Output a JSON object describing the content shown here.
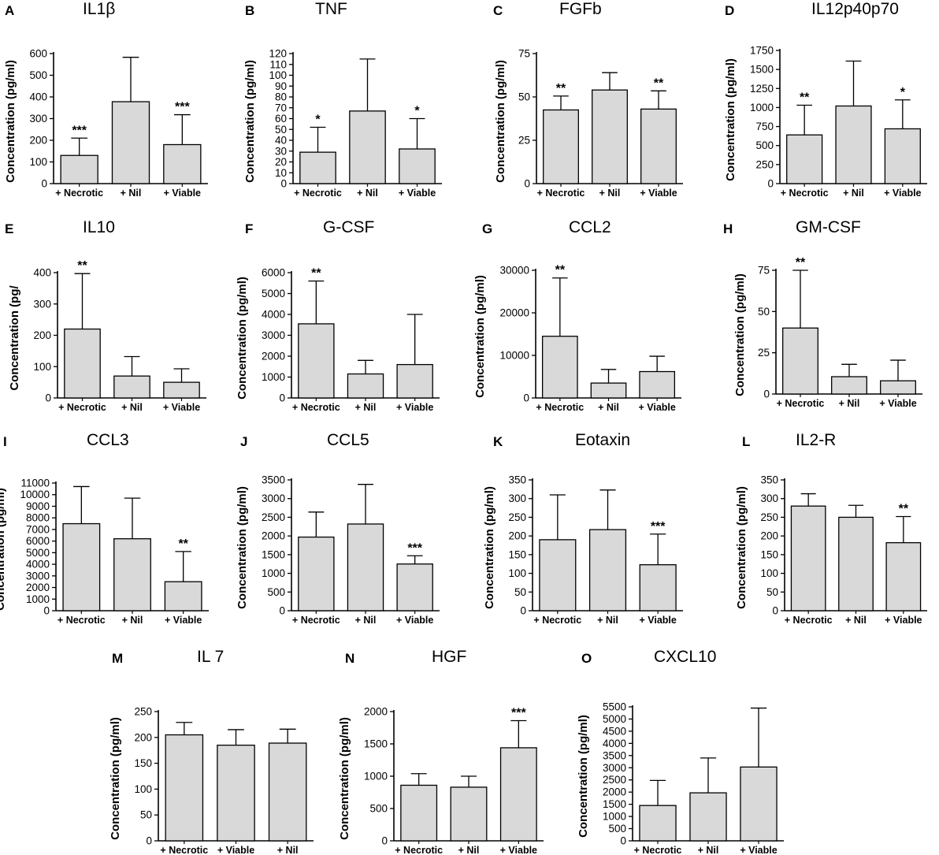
{
  "chart_data": [
    {
      "letter": "A",
      "title": "IL1β",
      "type": "bar",
      "ylabel": "Concentration (pg/ml)",
      "categories": [
        "+ Necrotic",
        "+ Nil",
        "+ Viable"
      ],
      "values": [
        130,
        378,
        180
      ],
      "errors": [
        210,
        583,
        318
      ],
      "significance": [
        "***",
        "",
        "***"
      ],
      "ylim": [
        0,
        600
      ],
      "yticks": [
        "0",
        "100",
        "200",
        "300",
        "400",
        "500",
        "600"
      ]
    },
    {
      "letter": "B",
      "title": "TNF",
      "type": "bar",
      "ylabel": "Concentration (pg/ml)",
      "categories": [
        "+ Necrotic",
        "+ Nil",
        "+ Viable"
      ],
      "values": [
        29,
        67,
        32
      ],
      "errors": [
        52,
        115,
        60
      ],
      "significance": [
        "*",
        "",
        "*"
      ],
      "ylim": [
        0,
        120
      ],
      "yticks": [
        "0",
        "10",
        "20",
        "30",
        "40",
        "50",
        "60",
        "70",
        "80",
        "90",
        "100",
        "110",
        "120"
      ]
    },
    {
      "letter": "C",
      "title": "FGFb",
      "type": "bar",
      "ylabel": "Concentration (pg/ml)",
      "categories": [
        "+ Necrotic",
        "+ Nil",
        "+ Viable"
      ],
      "values": [
        42.5,
        54,
        43
      ],
      "errors": [
        50.5,
        64,
        53.5
      ],
      "significance": [
        "**",
        "",
        "**"
      ],
      "ylim": [
        0,
        75
      ],
      "yticks": [
        "0",
        "25",
        "50",
        "75"
      ]
    },
    {
      "letter": "D",
      "title": "IL12p40p70",
      "type": "bar",
      "ylabel": "Concentration (pg/ml)",
      "categories": [
        "+ Necrotic",
        "+ Nil",
        "+ Viable"
      ],
      "values": [
        640,
        1020,
        720
      ],
      "errors": [
        1030,
        1610,
        1100
      ],
      "significance": [
        "**",
        "",
        "*"
      ],
      "ylim": [
        0,
        1750
      ],
      "yticks": [
        "0",
        "250",
        "500",
        "750",
        "1000",
        "1250",
        "1500",
        "1750"
      ]
    },
    {
      "letter": "E",
      "title": "IL10",
      "type": "bar",
      "ylabel": "Concentration (pg/",
      "categories": [
        "+ Necrotic",
        "+ Nil",
        "+ Viable"
      ],
      "values": [
        220,
        70,
        50
      ],
      "errors": [
        397,
        132,
        93
      ],
      "significance": [
        "**",
        "",
        ""
      ],
      "ylim": [
        0,
        400
      ],
      "yticks": [
        "0",
        "100",
        "200",
        "300",
        "400"
      ]
    },
    {
      "letter": "F",
      "title": "G-CSF",
      "type": "bar",
      "ylabel": "Concentration (pg/ml)",
      "categories": [
        "+ Necrotic",
        "+ Nil",
        "+ Viable"
      ],
      "values": [
        3550,
        1150,
        1600
      ],
      "errors": [
        5600,
        1800,
        4000
      ],
      "significance": [
        "**",
        "",
        ""
      ],
      "ylim": [
        0,
        6000
      ],
      "yticks": [
        "0",
        "1000",
        "2000",
        "3000",
        "4000",
        "5000",
        "6000"
      ]
    },
    {
      "letter": "G",
      "title": "CCL2",
      "type": "bar",
      "ylabel": "Concentration (pg/ml)",
      "categories": [
        "+ Necrotic",
        "+ Nil",
        "+ Viable"
      ],
      "values": [
        14500,
        3500,
        6200
      ],
      "errors": [
        28200,
        6700,
        9800
      ],
      "significance": [
        "**",
        "",
        ""
      ],
      "ylim": [
        0,
        30000
      ],
      "yticks": [
        "0",
        "10000",
        "20000",
        "30000"
      ]
    },
    {
      "letter": "H",
      "title": "GM-CSF",
      "type": "bar",
      "ylabel": "Concentration (pg/ml)",
      "categories": [
        "+ Necrotic",
        "+ Nil",
        "+ Viable"
      ],
      "values": [
        40,
        10.5,
        8
      ],
      "errors": [
        75,
        18,
        20.5
      ],
      "significance": [
        "**",
        "",
        ""
      ],
      "ylim": [
        0,
        75
      ],
      "yticks": [
        "0",
        "25",
        "50",
        "75"
      ]
    },
    {
      "letter": "I",
      "title": "CCL3",
      "type": "bar",
      "ylabel": "Concentration (pg/ml)",
      "categories": [
        "+ Necrotic",
        "+ Nil",
        "+ Viable"
      ],
      "values": [
        7500,
        6200,
        2500
      ],
      "errors": [
        10700,
        9700,
        5100
      ],
      "significance": [
        "",
        "",
        "**"
      ],
      "ylim": [
        0,
        11000
      ],
      "yticks": [
        "0",
        "1000",
        "2000",
        "3000",
        "4000",
        "5000",
        "6000",
        "7000",
        "8000",
        "9000",
        "10000",
        "11000"
      ]
    },
    {
      "letter": "J",
      "title": "CCL5",
      "type": "bar",
      "ylabel": "Concentration (pg/ml)",
      "categories": [
        "+ Necrotic",
        "+ Nil",
        "+ Viable"
      ],
      "values": [
        1970,
        2320,
        1250
      ],
      "errors": [
        2640,
        3380,
        1470
      ],
      "significance": [
        "",
        "",
        "***"
      ],
      "ylim": [
        0,
        3500
      ],
      "yticks": [
        "0",
        "500",
        "1000",
        "1500",
        "2000",
        "2500",
        "3000",
        "3500"
      ]
    },
    {
      "letter": "K",
      "title": "Eotaxin",
      "type": "bar",
      "ylabel": "Concentration (pg/ml)",
      "categories": [
        "+ Necrotic",
        "+ Nil",
        "+ Viable"
      ],
      "values": [
        190,
        217,
        123
      ],
      "errors": [
        310,
        323,
        205
      ],
      "significance": [
        "",
        "",
        "***"
      ],
      "ylim": [
        0,
        350
      ],
      "yticks": [
        "0",
        "50",
        "100",
        "150",
        "200",
        "250",
        "300",
        "350"
      ]
    },
    {
      "letter": "L",
      "title": "IL2-R",
      "type": "bar",
      "ylabel": "Concentration (pg/ml)",
      "categories": [
        "+ Necrotic",
        "+ Nil",
        "+ Viable"
      ],
      "values": [
        280,
        250,
        182
      ],
      "errors": [
        313,
        282,
        252
      ],
      "significance": [
        "",
        "",
        "**"
      ],
      "ylim": [
        0,
        350
      ],
      "yticks": [
        "0",
        "50",
        "100",
        "150",
        "200",
        "250",
        "300",
        "350"
      ]
    },
    {
      "letter": "M",
      "title": "IL 7",
      "type": "bar",
      "ylabel": "Concentration (pg/ml)",
      "categories": [
        "+ Necrotic",
        "+ Viable",
        "+ Nil"
      ],
      "values": [
        205,
        185,
        189
      ],
      "errors": [
        229,
        215,
        216
      ],
      "significance": [
        "",
        "",
        ""
      ],
      "ylim": [
        0,
        250
      ],
      "yticks": [
        "0",
        "50",
        "100",
        "150",
        "200",
        "250"
      ]
    },
    {
      "letter": "N",
      "title": "HGF",
      "type": "bar",
      "ylabel": "Concentration (pg/ml)",
      "categories": [
        "+ Necrotic",
        "+ Nil",
        "+ Viable"
      ],
      "values": [
        860,
        830,
        1440
      ],
      "errors": [
        1040,
        1000,
        1860
      ],
      "significance": [
        "",
        "",
        "***"
      ],
      "ylim": [
        0,
        2000
      ],
      "yticks": [
        "0",
        "500",
        "1000",
        "1500",
        "2000"
      ]
    },
    {
      "letter": "O",
      "title": "CXCL10",
      "type": "bar",
      "ylabel": "Concentration (pg/ml)",
      "categories": [
        "+ Necrotic",
        "+ Nil",
        "+ Viable"
      ],
      "values": [
        1450,
        1970,
        3030
      ],
      "errors": [
        2480,
        3400,
        5450
      ],
      "significance": [
        "",
        "",
        ""
      ],
      "ylim": [
        0,
        5500
      ],
      "yticks": [
        "0",
        "500",
        "1000",
        "1500",
        "2000",
        "2500",
        "3000",
        "3500",
        "4000",
        "4500",
        "5000",
        "5500"
      ]
    }
  ]
}
